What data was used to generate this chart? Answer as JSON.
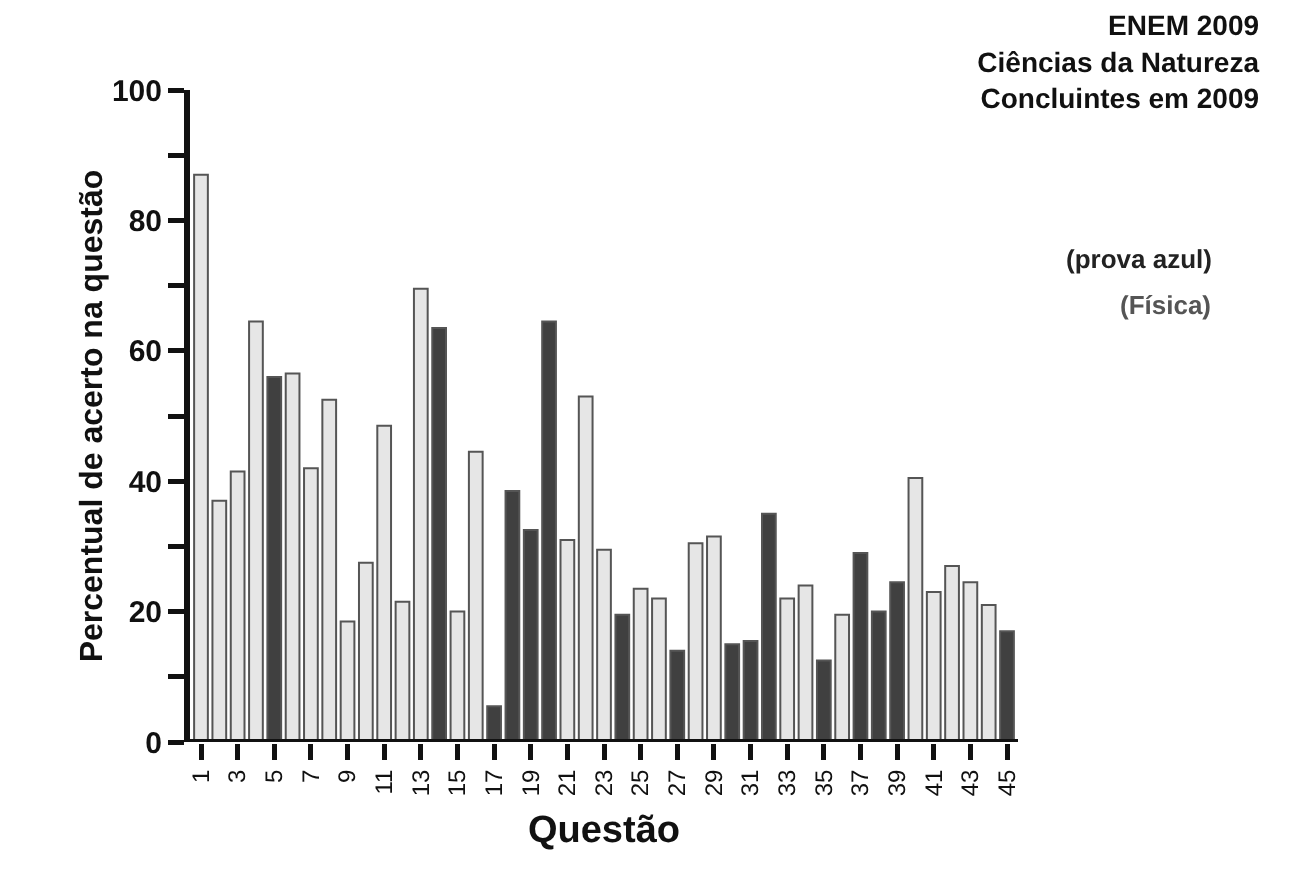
{
  "chart_data": {
    "type": "bar",
    "title": "ENEM 2009\nCiências da Natureza\nConcluintes em 2009",
    "xlabel": "Questão",
    "ylabel": "Percentual de acerto na questão",
    "annotations": [
      "(prova azul)",
      "(Física)"
    ],
    "categories": [
      "1",
      null,
      "3",
      null,
      "5",
      null,
      "7",
      null,
      "9",
      null,
      "11",
      null,
      "13",
      null,
      "15",
      null,
      "17",
      null,
      "19",
      null,
      "21",
      null,
      "23",
      null,
      "25",
      null,
      "27",
      null,
      "29",
      null,
      "31",
      null,
      "33",
      null,
      "35",
      null,
      "37",
      null,
      "39",
      null,
      "41",
      null,
      "43",
      null,
      "45"
    ],
    "values": [
      87,
      37,
      41.5,
      64.5,
      56,
      56.5,
      42,
      52.5,
      18.5,
      27.5,
      48.5,
      21.5,
      69.5,
      63.5,
      20,
      44.5,
      5.5,
      38.5,
      32.5,
      64.5,
      31,
      53,
      29.5,
      19.5,
      23.5,
      22,
      14,
      30.5,
      31.5,
      15,
      15.5,
      35,
      22,
      24,
      12.5,
      19.5,
      29,
      20,
      24.5,
      40.5,
      23,
      27,
      24.5,
      21,
      17
    ],
    "colors": [
      "#e6e6e6",
      "#e6e6e6",
      "#e6e6e6",
      "#e6e6e6",
      "#404040",
      "#e6e6e6",
      "#e6e6e6",
      "#e6e6e6",
      "#e6e6e6",
      "#e6e6e6",
      "#e6e6e6",
      "#e6e6e6",
      "#e6e6e6",
      "#404040",
      "#e6e6e6",
      "#e6e6e6",
      "#404040",
      "#404040",
      "#404040",
      "#404040",
      "#e6e6e6",
      "#e6e6e6",
      "#e6e6e6",
      "#404040",
      "#e6e6e6",
      "#e6e6e6",
      "#404040",
      "#e6e6e6",
      "#e6e6e6",
      "#404040",
      "#404040",
      "#404040",
      "#e6e6e6",
      "#e6e6e6",
      "#404040",
      "#e6e6e6",
      "#404040",
      "#404040",
      "#404040",
      "#e6e6e6",
      "#e6e6e6",
      "#e6e6e6",
      "#e6e6e6",
      "#e6e6e6",
      "#404040"
    ],
    "ylim": [
      0,
      100
    ],
    "yticks": [
      0,
      {
        "value": 10,
        "label": null
      },
      20,
      {
        "value": 30,
        "label": null
      },
      40,
      {
        "value": 50,
        "label": null
      },
      60,
      {
        "value": 70,
        "label": null
      },
      80,
      {
        "value": 90,
        "label": null
      },
      100
    ]
  }
}
